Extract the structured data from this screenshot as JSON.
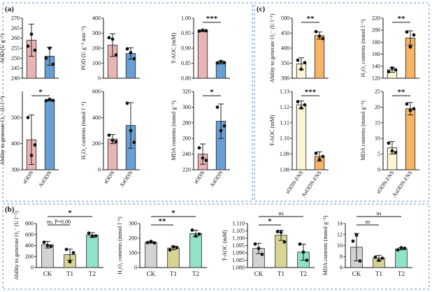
{
  "panel_labels": {
    "a": "(a)",
    "b": "(b)",
    "c": "(c)"
  },
  "colors": {
    "pink": "#E8B4B4",
    "blue": "#6A9FD4",
    "cream": "#FBF6D6",
    "orange": "#F6B466",
    "gray": "#D3D3D3",
    "olive": "#D8D494",
    "teal": "#8FE3C8",
    "frame": "#5B8FD4"
  },
  "chart_data": [
    {
      "id": "a1",
      "type": "bar",
      "categories": [
        "sODN",
        "AsODN"
      ],
      "values": [
        259,
        251
      ],
      "errors": [
        8,
        4.5
      ],
      "points": [
        [
          256,
          262,
          254
        ],
        [
          250,
          255,
          247
        ]
      ],
      "ylabel": "SOD (U g⁻¹)",
      "ylim": [
        240,
        270
      ],
      "ticks": [
        240,
        245,
        250,
        255,
        260,
        265,
        270
      ],
      "colors": [
        "#E8B4B4",
        "#6A9FD4"
      ],
      "show_x": false,
      "sig": null
    },
    {
      "id": "a2",
      "type": "bar",
      "categories": [
        "sODN",
        "AsODN"
      ],
      "values": [
        220,
        165
      ],
      "errors": [
        75,
        38
      ],
      "points": [
        [
          270,
          260,
          155
        ],
        [
          195,
          170,
          130
        ]
      ],
      "ylabel": "POD (U g⁻¹ min⁻¹)",
      "ylim": [
        0,
        400
      ],
      "ticks": [
        0,
        100,
        200,
        300,
        400
      ],
      "colors": [
        "#E8B4B4",
        "#6A9FD4"
      ],
      "show_x": false,
      "sig": null
    },
    {
      "id": "a3",
      "type": "bar",
      "categories": [
        "sODN",
        "AsODN"
      ],
      "values": [
        0.958,
        0.853
      ],
      "errors": [
        0.003,
        0.005
      ],
      "points": [
        [
          0.957,
          0.96,
          0.958
        ],
        [
          0.851,
          0.856,
          0.852
        ]
      ],
      "ylabel": "T-AOC (mM)",
      "ylim": [
        0.8,
        1.0
      ],
      "ticks": [
        0.8,
        0.85,
        0.9,
        0.95,
        1.0
      ],
      "colors": [
        "#E8B4B4",
        "#6A9FD4"
      ],
      "show_x": false,
      "sig": "***"
    },
    {
      "id": "a4",
      "type": "bar",
      "categories": [
        "sODN",
        "AsODN"
      ],
      "values": [
        415,
        567
      ],
      "errors": [
        95,
        3
      ],
      "points": [
        [
          500,
          355,
          395
        ],
        [
          565,
          570,
          566
        ]
      ],
      "ylabel": "Ability to generate O₂⁻ (U l⁻¹)",
      "ylim": [
        300,
        600
      ],
      "ticks": [
        300,
        400,
        500
      ],
      "colors": [
        "#E8B4B4",
        "#6A9FD4"
      ],
      "show_x": true,
      "sig": "*"
    },
    {
      "id": "a5",
      "type": "bar",
      "categories": [
        "sODN",
        "AsODN"
      ],
      "values": [
        235,
        340
      ],
      "errors": [
        35,
        175
      ],
      "points": [
        [
          265,
          225,
          215
        ],
        [
          510,
          300,
          210
        ]
      ],
      "ylabel": "H₂O₂ contents (mmol l⁻¹)",
      "ylim": [
        0,
        600
      ],
      "ticks": [
        0,
        200,
        400,
        600
      ],
      "colors": [
        "#E8B4B4",
        "#6A9FD4"
      ],
      "show_x": true,
      "sig": null
    },
    {
      "id": "a6",
      "type": "bar",
      "categories": [
        "sODN",
        "AsODN"
      ],
      "values": [
        240,
        282
      ],
      "errors": [
        13,
        22
      ],
      "points": [
        [
          248,
          235,
          232
        ],
        [
          300,
          270,
          276
        ]
      ],
      "ylabel": "MDA contents (mmol g⁻¹)",
      "ylim": [
        220,
        320
      ],
      "ticks": [
        220,
        240,
        260,
        280,
        300,
        320
      ],
      "colors": [
        "#E8B4B4",
        "#6A9FD4"
      ],
      "show_x": true,
      "sig": "*"
    },
    {
      "id": "c1",
      "type": "bar",
      "categories": [
        "sODN-FNS",
        "AsODN-FNS"
      ],
      "values": [
        348,
        442
      ],
      "errors": [
        20,
        12
      ],
      "points": [
        [
          360,
          330,
          352
        ],
        [
          455,
          440,
          432
        ]
      ],
      "ylabel": "Ability to generate O₂⁻ (U l⁻¹)",
      "ylim": [
        300,
        500
      ],
      "ticks": [
        300,
        350,
        400,
        450,
        500
      ],
      "colors": [
        "#FBF6D6",
        "#F6B466"
      ],
      "show_x": false,
      "sig": "**"
    },
    {
      "id": "c2",
      "type": "bar",
      "categories": [
        "sODN-FNS",
        "AsODN-FNS"
      ],
      "values": [
        134,
        187
      ],
      "errors": [
        4,
        12
      ],
      "points": [
        [
          131,
          137,
          134
        ],
        [
          197,
          172,
          192
        ]
      ],
      "ylabel": "H₂O₂ contents (mmol l⁻¹)",
      "ylim": [
        120,
        220
      ],
      "ticks": [
        120,
        140,
        160,
        180,
        200,
        220
      ],
      "colors": [
        "#FBF6D6",
        "#F6B466"
      ],
      "show_x": false,
      "sig": "**"
    },
    {
      "id": "c3",
      "type": "bar",
      "categories": [
        "sODN-FNS",
        "AsODN-FNS"
      ],
      "values": [
        1.1215,
        1.0885
      ],
      "errors": [
        0.0025,
        0.003
      ],
      "points": [
        [
          1.1235,
          1.1195,
          1.1215
        ],
        [
          1.0905,
          1.0865,
          1.0885
        ]
      ],
      "ylabel": "T-AOC (mM)",
      "ylim": [
        1.08,
        1.13
      ],
      "ticks": [
        1.08,
        1.09,
        1.1,
        1.11,
        1.12,
        1.13
      ],
      "colors": [
        "#FBF6D6",
        "#F6B466"
      ],
      "show_x": true,
      "sig": "***"
    },
    {
      "id": "c4",
      "type": "bar",
      "categories": [
        "sODN-FNS",
        "AsODN-FNS"
      ],
      "values": [
        7,
        19.5
      ],
      "errors": [
        2,
        2
      ],
      "points": [
        [
          8.5,
          6,
          5.5
        ],
        [
          21,
          19,
          19.5
        ]
      ],
      "ylabel": "MDA contents (mmol g⁻¹)",
      "ylim": [
        0,
        25
      ],
      "ticks": [
        0,
        5,
        10,
        15,
        20,
        25
      ],
      "colors": [
        "#FBF6D6",
        "#F6B466"
      ],
      "show_x": true,
      "sig": "**"
    },
    {
      "id": "b1",
      "type": "bar",
      "categories": [
        "CK",
        "T1",
        "T2"
      ],
      "values": [
        415,
        235,
        590
      ],
      "errors": [
        60,
        100,
        45
      ],
      "points": [
        [
          460,
          400,
          385
        ],
        [
          330,
          105,
          270
        ],
        [
          625,
          570,
          575
        ]
      ],
      "ylabel": "Ability to generate O₂⁻ (U l⁻¹)",
      "ylim": [
        0,
        800
      ],
      "ticks": [
        0,
        200,
        400,
        600,
        800
      ],
      "colors": [
        "#D3D3D3",
        "#D8D494",
        "#8FE3C8"
      ],
      "show_x": true,
      "brackets": [
        {
          "from": 0,
          "to": 1,
          "label": "ns, P=0.06",
          "level": 0
        },
        {
          "from": 0,
          "to": 2,
          "label": "*",
          "level": 1
        }
      ]
    },
    {
      "id": "b2",
      "type": "bar",
      "categories": [
        "CK",
        "T1",
        "T2"
      ],
      "values": [
        172,
        133,
        232
      ],
      "errors": [
        6,
        12,
        22
      ],
      "points": [
        [
          170,
          178,
          168
        ],
        [
          120,
          142,
          136
        ],
        [
          255,
          215,
          228
        ]
      ],
      "ylabel": "H₂O₂ contents (mmol l⁻¹)",
      "ylim": [
        0,
        300
      ],
      "ticks": [
        0,
        100,
        200,
        300
      ],
      "colors": [
        "#D3D3D3",
        "#D8D494",
        "#8FE3C8"
      ],
      "show_x": true,
      "brackets": [
        {
          "from": 0,
          "to": 1,
          "label": "**",
          "level": 0
        },
        {
          "from": 0,
          "to": 2,
          "label": "*",
          "level": 1
        }
      ]
    },
    {
      "id": "b3",
      "type": "bar",
      "categories": [
        "CK",
        "T1",
        "T2"
      ],
      "values": [
        1.093,
        1.102,
        1.0905
      ],
      "errors": [
        0.0035,
        0.0035,
        0.0055
      ],
      "points": [
        [
          1.096,
          1.093,
          1.089
        ],
        [
          1.1045,
          1.104,
          1.0975
        ],
        [
          1.096,
          1.0905,
          1.085
        ]
      ],
      "ylabel": "T-AOC (mM)",
      "ylim": [
        1.08,
        1.11
      ],
      "ticks": [
        1.08,
        1.085,
        1.09,
        1.095,
        1.1,
        1.105,
        1.11
      ],
      "colors": [
        "#D3D3D3",
        "#D8D494",
        "#8FE3C8"
      ],
      "show_x": true,
      "brackets": [
        {
          "from": 0,
          "to": 1,
          "label": "*",
          "level": 0
        },
        {
          "from": 0,
          "to": 2,
          "label": "ns",
          "level": 1
        }
      ]
    },
    {
      "id": "b4",
      "type": "bar",
      "categories": [
        "CK",
        "T1",
        "T2"
      ],
      "values": [
        9.7,
        7.7,
        9.4
      ],
      "errors": [
        2.5,
        0.5,
        0.2
      ],
      "points": [
        [
          10.8,
          11.9,
          7.2
        ],
        [
          7.9,
          7.3,
          7.7
        ],
        [
          9.2,
          9.6,
          9.5
        ]
      ],
      "ylabel": "MDA contents (mmol g⁻¹)",
      "ylim": [
        6,
        14
      ],
      "ticks": [
        6,
        8,
        10,
        12,
        14
      ],
      "colors": [
        "#D3D3D3",
        "#D8D494",
        "#8FE3C8"
      ],
      "show_x": true,
      "brackets": [
        {
          "from": 0,
          "to": 1,
          "label": "ns",
          "level": 0
        },
        {
          "from": 0,
          "to": 2,
          "label": "ns",
          "level": 1
        }
      ]
    }
  ]
}
